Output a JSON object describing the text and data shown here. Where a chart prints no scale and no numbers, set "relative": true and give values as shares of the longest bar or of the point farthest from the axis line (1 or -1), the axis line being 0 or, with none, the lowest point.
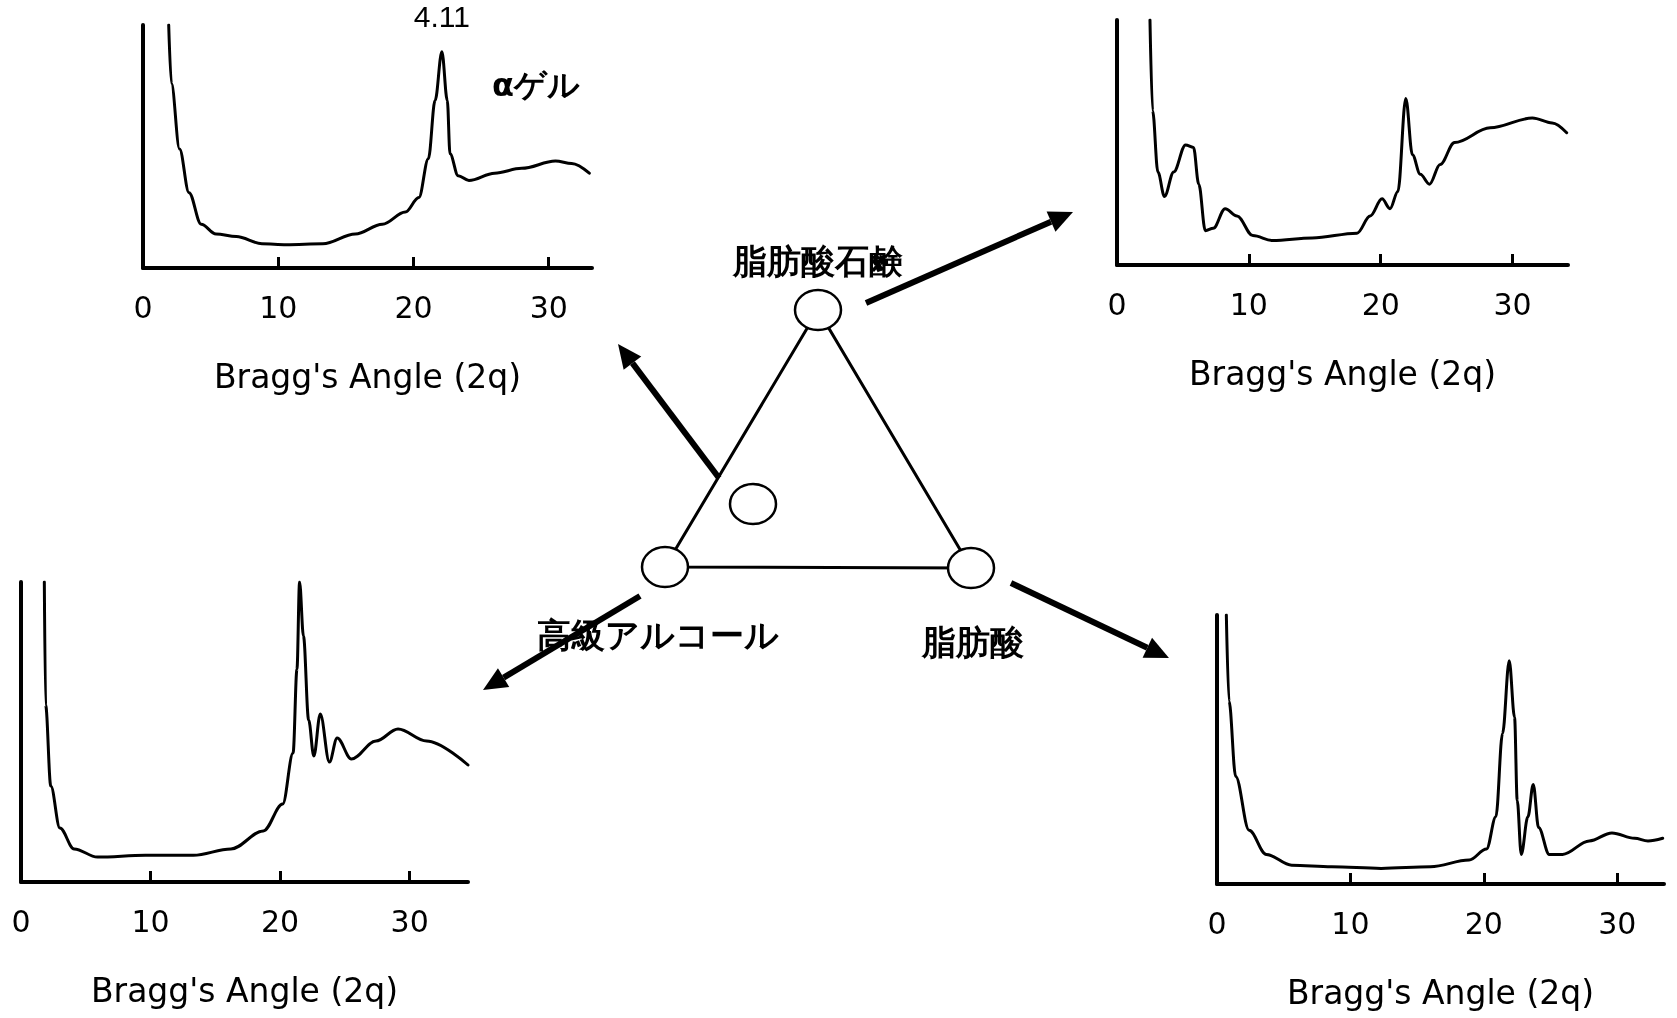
{
  "chart_data": [
    {
      "type": "line",
      "relative": true,
      "color": "#000000",
      "marker": "none",
      "tick_labels": "x",
      "xlabel": "Bragg's Angle (2q)",
      "xlim": [
        0,
        33.2
      ],
      "xticks": [
        0,
        10,
        20,
        30
      ],
      "x": [
        1.9,
        2.1,
        2.7,
        3.4,
        4.3,
        5.4,
        6.9,
        8.8,
        10.6,
        13.3,
        15.7,
        17.7,
        19.4,
        20.4,
        21.1,
        21.6,
        22.1,
        22.5,
        22.7,
        23.3,
        24.1,
        26.0,
        28.0,
        30.5,
        31.7,
        33.0
      ],
      "values": [
        1.0,
        0.76,
        0.49,
        0.31,
        0.18,
        0.14,
        0.13,
        0.1,
        0.096,
        0.1,
        0.14,
        0.18,
        0.23,
        0.29,
        0.45,
        0.69,
        0.89,
        0.69,
        0.47,
        0.38,
        0.36,
        0.39,
        0.41,
        0.44,
        0.43,
        0.39
      ],
      "annotations": [
        {
          "text": "4.11",
          "x": 22.1,
          "y": 0.89
        },
        "αゲル"
      ]
    },
    {
      "type": "line",
      "relative": true,
      "color": "#000000",
      "marker": "none",
      "tick_labels": "x",
      "xlabel": "Bragg's Angle (2q)",
      "xlim": [
        0,
        34.2
      ],
      "xticks": [
        0,
        10,
        20,
        30
      ],
      "x": [
        2.5,
        2.7,
        3.1,
        3.6,
        4.3,
        5.2,
        5.8,
        6.2,
        6.7,
        7.3,
        8.2,
        9.1,
        10.3,
        11.8,
        14.8,
        18.2,
        19.2,
        20.1,
        20.7,
        21.3,
        21.9,
        22.4,
        23.0,
        23.7,
        24.5,
        25.6,
        28.3,
        31.5,
        33.0,
        34.1
      ],
      "values": [
        1.0,
        0.63,
        0.38,
        0.28,
        0.38,
        0.49,
        0.48,
        0.33,
        0.14,
        0.15,
        0.23,
        0.2,
        0.12,
        0.1,
        0.11,
        0.13,
        0.2,
        0.27,
        0.23,
        0.3,
        0.68,
        0.45,
        0.37,
        0.33,
        0.41,
        0.5,
        0.56,
        0.6,
        0.58,
        0.54
      ]
    },
    {
      "type": "other",
      "annotations": [
        "脂肪酸石鹸",
        "高級アルコール",
        "脂肪酸"
      ]
    },
    {
      "type": "line",
      "relative": true,
      "color": "#000000",
      "marker": "none",
      "tick_labels": "x",
      "xlabel": "Bragg's Angle (2q)",
      "xlim": [
        0,
        34.5
      ],
      "xticks": [
        0,
        10,
        20,
        30
      ],
      "x": [
        1.8,
        1.9,
        2.3,
        3.0,
        4.1,
        5.9,
        9.6,
        13.3,
        16.2,
        18.7,
        20.2,
        21.0,
        21.3,
        21.5,
        21.8,
        22.2,
        22.6,
        23.1,
        23.8,
        24.4,
        25.5,
        27.4,
        29.1,
        31.3,
        34.5
      ],
      "values": [
        1.0,
        0.59,
        0.32,
        0.18,
        0.11,
        0.083,
        0.089,
        0.089,
        0.11,
        0.17,
        0.26,
        0.43,
        0.71,
        1.0,
        0.82,
        0.54,
        0.42,
        0.56,
        0.4,
        0.48,
        0.41,
        0.47,
        0.51,
        0.47,
        0.39
      ]
    },
    {
      "type": "line",
      "relative": true,
      "color": "#000000",
      "marker": "none",
      "tick_labels": "x",
      "xlabel": "Bragg's Angle (2q)",
      "xlim": [
        0,
        33.5
      ],
      "xticks": [
        0,
        10,
        20,
        30
      ],
      "x": [
        0.7,
        0.9,
        1.4,
        2.4,
        3.7,
        5.6,
        8.6,
        12.3,
        16.0,
        18.9,
        20.2,
        20.9,
        21.4,
        21.9,
        22.3,
        22.5,
        22.8,
        23.3,
        23.7,
        24.1,
        24.9,
        25.9,
        27.9,
        29.6,
        31.3,
        32.3,
        33.4
      ],
      "values": [
        1.0,
        0.68,
        0.4,
        0.2,
        0.11,
        0.07,
        0.064,
        0.058,
        0.064,
        0.089,
        0.13,
        0.25,
        0.56,
        0.83,
        0.62,
        0.31,
        0.11,
        0.25,
        0.37,
        0.21,
        0.11,
        0.11,
        0.16,
        0.19,
        0.17,
        0.16,
        0.17
      ]
    }
  ]
}
